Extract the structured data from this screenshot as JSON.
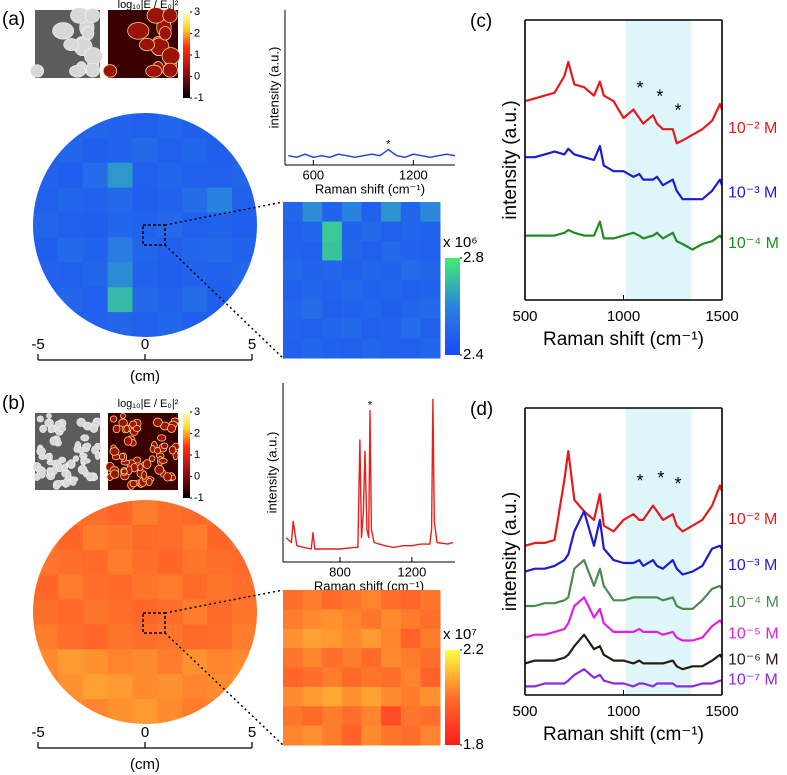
{
  "chart_data": [
    {
      "type": "line",
      "panel": "(a)",
      "xlabel": "Raman shift (cm⁻¹)",
      "ylabel": "intensity (a.u.)",
      "x": [
        450,
        500,
        550,
        600,
        650,
        700,
        750,
        800,
        850,
        900,
        950,
        1000,
        1050,
        1100,
        1150,
        1200,
        1250,
        1300,
        1350,
        1400,
        1450
      ],
      "series": [
        {
          "color": "#1f3ed8",
          "values": [
            6,
            5,
            7,
            5,
            6,
            5,
            7,
            6,
            5,
            6,
            7,
            6,
            10,
            6,
            5,
            7,
            6,
            5,
            6,
            7,
            6
          ]
        }
      ],
      "xlim": [
        430,
        1450
      ],
      "ylim": [
        0,
        100
      ],
      "xticks": [
        600,
        1200
      ],
      "annotations": [
        {
          "text": "*",
          "x": 1050,
          "y": 10
        }
      ]
    },
    {
      "type": "heatmap",
      "shape": "circle",
      "xlabel": "(cm)",
      "xlim": [
        -5,
        5
      ],
      "xticks": [
        -5,
        0,
        5
      ],
      "zlim": [
        2.4,
        2.8
      ],
      "colorscale": [
        [
          0,
          "#1a4af5"
        ],
        [
          0.5,
          "#2a82e0"
        ],
        [
          1,
          "#40f070"
        ]
      ],
      "z": [
        [
          2.47,
          2.48,
          2.5,
          2.49,
          2.48,
          2.5,
          2.47,
          2.49,
          2.48
        ],
        [
          2.48,
          2.5,
          2.47,
          2.49,
          2.51,
          2.48,
          2.5,
          2.47,
          2.49
        ],
        [
          2.49,
          2.47,
          2.52,
          2.64,
          2.48,
          2.5,
          2.49,
          2.48,
          2.5
        ],
        [
          2.48,
          2.5,
          2.49,
          2.51,
          2.47,
          2.49,
          2.52,
          2.6,
          2.48
        ],
        [
          2.5,
          2.48,
          2.47,
          2.5,
          2.49,
          2.51,
          2.48,
          2.49,
          2.47
        ],
        [
          2.47,
          2.51,
          2.49,
          2.58,
          2.5,
          2.48,
          2.5,
          2.51,
          2.49
        ],
        [
          2.49,
          2.48,
          2.5,
          2.62,
          2.49,
          2.47,
          2.49,
          2.48,
          2.5
        ],
        [
          2.48,
          2.5,
          2.48,
          2.7,
          2.51,
          2.49,
          2.52,
          2.47,
          2.48
        ],
        [
          2.5,
          2.47,
          2.49,
          2.5,
          2.48,
          2.5,
          2.47,
          2.49,
          2.48
        ]
      ]
    },
    {
      "type": "heatmap",
      "shape": "square",
      "zlim": [
        2.4,
        2.8
      ],
      "zticks": [
        2.4,
        2.8
      ],
      "zlabel": "x 10⁶",
      "colorscale": [
        [
          0,
          "#1a4af5"
        ],
        [
          0.5,
          "#2a82e0"
        ],
        [
          1,
          "#40f070"
        ]
      ],
      "z": [
        [
          2.5,
          2.62,
          2.49,
          2.6,
          2.48,
          2.63,
          2.5,
          2.61
        ],
        [
          2.48,
          2.5,
          2.73,
          2.49,
          2.51,
          2.48,
          2.5,
          2.49
        ],
        [
          2.49,
          2.48,
          2.72,
          2.5,
          2.48,
          2.51,
          2.49,
          2.48
        ],
        [
          2.51,
          2.49,
          2.5,
          2.48,
          2.5,
          2.49,
          2.52,
          2.5
        ],
        [
          2.48,
          2.5,
          2.49,
          2.51,
          2.49,
          2.5,
          2.48,
          2.49
        ],
        [
          2.5,
          2.52,
          2.48,
          2.49,
          2.5,
          2.47,
          2.5,
          2.51
        ],
        [
          2.49,
          2.48,
          2.5,
          2.51,
          2.48,
          2.49,
          2.52,
          2.48
        ],
        [
          2.48,
          2.5,
          2.49,
          2.48,
          2.5,
          2.49,
          2.48,
          2.5
        ]
      ]
    },
    {
      "type": "colorbar",
      "title": "log₁₀|E / E₀|²",
      "zlim": [
        -1,
        3
      ],
      "zticks": [
        -1,
        0,
        1,
        2,
        3
      ],
      "colorscale": [
        [
          0,
          "#000000"
        ],
        [
          0.35,
          "#b01010"
        ],
        [
          0.6,
          "#ff3010"
        ],
        [
          0.8,
          "#ffd020"
        ],
        [
          1,
          "#ffffc0"
        ]
      ]
    },
    {
      "type": "line",
      "panel": "(b)",
      "xlabel": "Raman shift (cm⁻¹)",
      "ylabel": "intensity (a.u.)",
      "x": [
        500,
        530,
        540,
        560,
        600,
        640,
        650,
        660,
        700,
        800,
        880,
        900,
        911,
        920,
        930,
        939,
        950,
        960,
        967,
        975,
        990,
        1050,
        1100,
        1150,
        1200,
        1250,
        1300,
        1310,
        1317,
        1325,
        1340,
        1400,
        1430
      ],
      "series": [
        {
          "color": "#e8201c",
          "values": [
            15,
            12,
            25,
            10,
            9,
            8,
            18,
            8,
            8,
            8,
            9,
            9,
            75,
            15,
            30,
            68,
            20,
            15,
            93,
            20,
            12,
            10,
            9,
            10,
            10,
            11,
            11,
            20,
            100,
            25,
            12,
            11,
            12
          ]
        }
      ],
      "xlim": [
        483,
        1440
      ],
      "ylim": [
        0,
        110
      ],
      "xticks": [
        800,
        1200
      ],
      "annotations": [
        {
          "text": "*",
          "x": 967,
          "y": 93
        }
      ]
    },
    {
      "type": "heatmap",
      "shape": "circle",
      "xlabel": "(cm)",
      "xlim": [
        -5,
        5
      ],
      "xticks": [
        -5,
        0,
        5
      ],
      "zlim": [
        1.8,
        2.2
      ],
      "colorscale": [
        [
          0,
          "#ff1a1a"
        ],
        [
          0.5,
          "#ff6e2a"
        ],
        [
          1,
          "#ffff40"
        ]
      ],
      "z": [
        [
          1.99,
          2.01,
          2.0,
          1.98,
          2.02,
          2.0,
          1.99,
          2.01,
          2.0
        ],
        [
          2.0,
          1.98,
          2.02,
          2.01,
          1.99,
          2.0,
          2.02,
          1.98,
          2.01
        ],
        [
          2.01,
          2.0,
          1.99,
          2.02,
          2.0,
          1.98,
          2.01,
          2.0,
          1.99
        ],
        [
          1.98,
          2.02,
          2.0,
          1.99,
          2.01,
          2.02,
          1.99,
          2.01,
          2.0
        ],
        [
          2.0,
          1.99,
          2.01,
          2.0,
          1.98,
          2.0,
          2.02,
          1.99,
          2.01
        ],
        [
          2.02,
          2.0,
          1.98,
          2.01,
          2.0,
          2.01,
          1.99,
          2.0,
          2.02
        ],
        [
          2.04,
          2.06,
          2.05,
          2.03,
          2.04,
          2.02,
          2.05,
          2.03,
          2.04
        ],
        [
          2.03,
          2.05,
          2.07,
          2.06,
          2.04,
          2.05,
          2.03,
          2.04,
          2.05
        ],
        [
          2.02,
          2.04,
          2.03,
          2.05,
          2.06,
          2.04,
          2.02,
          2.03,
          2.04
        ]
      ]
    },
    {
      "type": "heatmap",
      "shape": "square",
      "zlim": [
        1.8,
        2.2
      ],
      "zticks": [
        1.8,
        2.2
      ],
      "zlabel": "x 10⁷",
      "colorscale": [
        [
          0,
          "#ff1a1a"
        ],
        [
          0.5,
          "#ff6e2a"
        ],
        [
          1,
          "#ffff40"
        ]
      ],
      "z": [
        [
          2.0,
          2.02,
          1.99,
          2.01,
          2.03,
          2.0,
          1.98,
          2.01
        ],
        [
          2.02,
          2.04,
          2.05,
          2.03,
          2.01,
          2.04,
          2.02,
          2.0
        ],
        [
          2.05,
          2.07,
          2.06,
          2.04,
          2.06,
          2.03,
          1.97,
          2.02
        ],
        [
          2.01,
          2.03,
          2.0,
          2.02,
          1.99,
          2.04,
          2.02,
          2.0
        ],
        [
          1.98,
          2.0,
          2.02,
          1.99,
          2.01,
          2.0,
          2.03,
          1.97
        ],
        [
          2.04,
          2.06,
          2.08,
          2.05,
          2.07,
          2.04,
          2.02,
          2.05
        ],
        [
          2.01,
          1.99,
          2.02,
          2.0,
          2.03,
          1.92,
          2.01,
          2.0
        ],
        [
          2.03,
          2.05,
          2.02,
          1.97,
          2.04,
          2.01,
          2.0,
          2.03
        ]
      ]
    },
    {
      "type": "colorbar",
      "title": "log₁₀|E / E₀|²",
      "zlim": [
        -1,
        3
      ],
      "zticks": [
        -1,
        0,
        1,
        2,
        3
      ],
      "colorscale": [
        [
          0,
          "#000000"
        ],
        [
          0.35,
          "#b01010"
        ],
        [
          0.6,
          "#ff3010"
        ],
        [
          0.8,
          "#ffd020"
        ],
        [
          1,
          "#ffffc0"
        ]
      ]
    },
    {
      "type": "line",
      "panel": "(c)",
      "xlabel": "Raman shift (cm⁻¹)",
      "ylabel": "intensity (a.u.)",
      "x": [
        500,
        550,
        600,
        650,
        700,
        720,
        750,
        800,
        850,
        880,
        900,
        950,
        1000,
        1050,
        1080,
        1100,
        1150,
        1170,
        1200,
        1250,
        1270,
        1300,
        1350,
        1400,
        1450,
        1490,
        1500
      ],
      "series": [
        {
          "name": "10⁻² M",
          "color": "#e41a1c",
          "values": [
            71,
            72,
            73,
            74,
            80,
            85,
            77,
            76,
            73,
            78,
            73,
            71,
            65,
            68,
            65,
            63,
            66,
            63,
            61,
            61,
            56,
            57,
            59,
            61,
            64,
            70,
            68
          ]
        },
        {
          "name": "10⁻³ M",
          "color": "#1c1ccf",
          "values": [
            51,
            51,
            52,
            53,
            52,
            54,
            52,
            51,
            50,
            55,
            48,
            46,
            46,
            44,
            45,
            43,
            43,
            44,
            41,
            43,
            39,
            36,
            36,
            36,
            39,
            43,
            41
          ]
        },
        {
          "name": "10⁻⁴ M",
          "color": "#238b23",
          "values": [
            23,
            23,
            23,
            23,
            24,
            25,
            24,
            23,
            23,
            28,
            22,
            22,
            23,
            24,
            23,
            22,
            23,
            24,
            22,
            24,
            21,
            20,
            18,
            20,
            21,
            23,
            22
          ]
        }
      ],
      "xlim": [
        500,
        1500
      ],
      "ylim": [
        0,
        100
      ],
      "xticks": [
        500,
        1000,
        1500
      ],
      "band": [
        1010,
        1345
      ],
      "band_color": "#dff7fa",
      "annotations": [
        {
          "text": "*",
          "x": 1084,
          "y": 72
        },
        {
          "text": "*",
          "x": 1185,
          "y": 69
        },
        {
          "text": "*",
          "x": 1277,
          "y": 64
        }
      ]
    },
    {
      "type": "line",
      "panel": "(d)",
      "xlabel": "Raman shift (cm⁻¹)",
      "ylabel": "intensity (a.u.)",
      "x": [
        500,
        550,
        600,
        650,
        700,
        720,
        750,
        800,
        850,
        880,
        900,
        950,
        1000,
        1050,
        1080,
        1100,
        1150,
        1170,
        1200,
        1250,
        1270,
        1300,
        1350,
        1400,
        1450,
        1490,
        1500
      ],
      "series": [
        {
          "name": "10⁻² M",
          "color": "#e41a1c",
          "values": [
            52,
            53,
            53,
            54,
            75,
            85,
            68,
            64,
            61,
            70,
            59,
            57,
            61,
            63,
            61,
            61,
            66,
            64,
            61,
            63,
            59,
            57,
            59,
            61,
            66,
            73,
            71
          ]
        },
        {
          "name": "10⁻³ M",
          "color": "#1c1ccf",
          "values": [
            43,
            44,
            44,
            45,
            47,
            49,
            57,
            64,
            52,
            61,
            51,
            47,
            46,
            46,
            47,
            45,
            47,
            45,
            44,
            47,
            44,
            42,
            43,
            45,
            51,
            52,
            51
          ]
        },
        {
          "name": "10⁻⁴ M",
          "color": "#4e8a4e",
          "values": [
            31,
            31,
            32,
            32,
            33,
            34,
            44,
            47,
            38,
            44,
            38,
            33,
            33,
            34,
            34,
            34,
            34,
            34,
            33,
            34,
            31,
            30,
            30,
            33,
            37,
            38,
            37
          ]
        },
        {
          "name": "10⁻⁵ M",
          "color": "#e020e0",
          "values": [
            20,
            21,
            21,
            22,
            23,
            25,
            31,
            34,
            27,
            30,
            25,
            22,
            22,
            22,
            23,
            22,
            22,
            22,
            21,
            22,
            20,
            19,
            19,
            20,
            24,
            26,
            25
          ]
        },
        {
          "name": "10⁻⁶ M",
          "color": "#2a1a10",
          "values": [
            11,
            12,
            12,
            12,
            13,
            14,
            17,
            21,
            16,
            17,
            14,
            12,
            12,
            11,
            12,
            11,
            11,
            11,
            11,
            12,
            10,
            9,
            10,
            10,
            12,
            14,
            13
          ]
        },
        {
          "name": "10⁻⁷ M",
          "color": "#8a2be2",
          "values": [
            3,
            3,
            4,
            4,
            4,
            5,
            7,
            9,
            6,
            7,
            5,
            4,
            4,
            3,
            4,
            4,
            3,
            4,
            4,
            4,
            3,
            3,
            3,
            4,
            4,
            5,
            5
          ]
        }
      ],
      "xlim": [
        500,
        1500
      ],
      "ylim": [
        0,
        100
      ],
      "xticks": [
        500,
        1000,
        1500
      ],
      "band": [
        1010,
        1345
      ],
      "band_color": "#dff7fa",
      "annotations": [
        {
          "text": "*",
          "x": 1084,
          "y": 71
        },
        {
          "text": "*",
          "x": 1190,
          "y": 72
        },
        {
          "text": "*",
          "x": 1277,
          "y": 70
        }
      ]
    }
  ]
}
